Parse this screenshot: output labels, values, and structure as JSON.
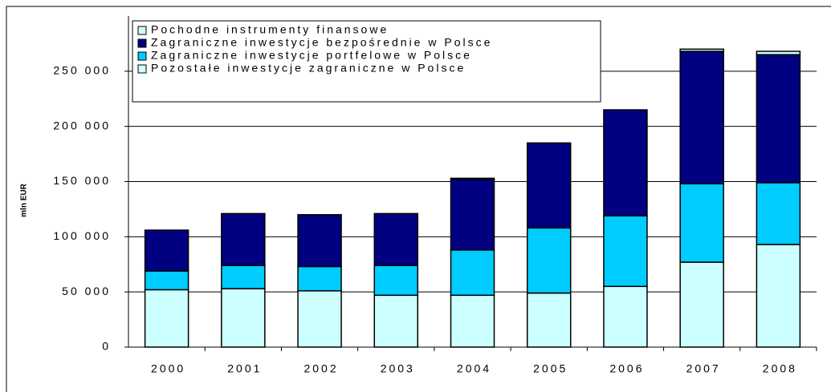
{
  "chart_data": {
    "type": "stacked_bar",
    "y_label": "mln EUR",
    "categories": [
      "2000",
      "2001",
      "2002",
      "2003",
      "2004",
      "2005",
      "2006",
      "2007",
      "2008"
    ],
    "series": [
      {
        "name": "Pozostałe inwestycje zagraniczne w Polsce",
        "color": "#ccffff",
        "values": [
          52000,
          53000,
          51000,
          47000,
          47000,
          49000,
          55000,
          77000,
          93000
        ]
      },
      {
        "name": "Zagraniczne inwestycje portfelowe w Polsce",
        "color": "#00ccff",
        "values": [
          17000,
          21000,
          22000,
          27000,
          41000,
          59000,
          64000,
          71000,
          56000
        ]
      },
      {
        "name": "Zagraniczne inwestycje bezpośrednie w Polsce",
        "color": "#000080",
        "values": [
          37000,
          47000,
          47000,
          47000,
          64000,
          77000,
          96000,
          120000,
          116000
        ]
      },
      {
        "name": "Pochodne instrumenty finansowe",
        "color": "#ccffff",
        "values": [
          0,
          0,
          0,
          0,
          1000,
          0,
          0,
          2000,
          3000
        ]
      }
    ],
    "ylim": [
      0,
      300000
    ],
    "yticks": [
      0,
      {
        "value": 50000,
        "label": "50 000"
      },
      {
        "value": 100000,
        "label": "100 000"
      },
      {
        "value": 150000,
        "label": "150 000"
      },
      {
        "value": 200000,
        "label": "200 000"
      },
      {
        "value": 250000,
        "label": "250 000"
      }
    ],
    "grid": true
  }
}
